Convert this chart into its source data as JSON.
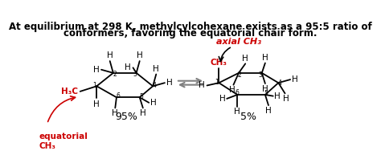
{
  "title_line1": "At equilibrium at 298 K, methylcylcohexane exists as a 95:5 ratio of",
  "title_line2": "conformers, favoring the equatorial chair form.",
  "title_fontsize": 8.5,
  "title_bold": true,
  "bg_color": "#ffffff",
  "text_color": "#000000",
  "red_color": "#cc0000",
  "label_95": "95%",
  "label_5": "5%",
  "equatorial_label": "equatorial\nCH₃",
  "axial_label": "axial CH₃",
  "eq_CH3_label": "H₃C",
  "ax_CH3_label": "CH₃"
}
